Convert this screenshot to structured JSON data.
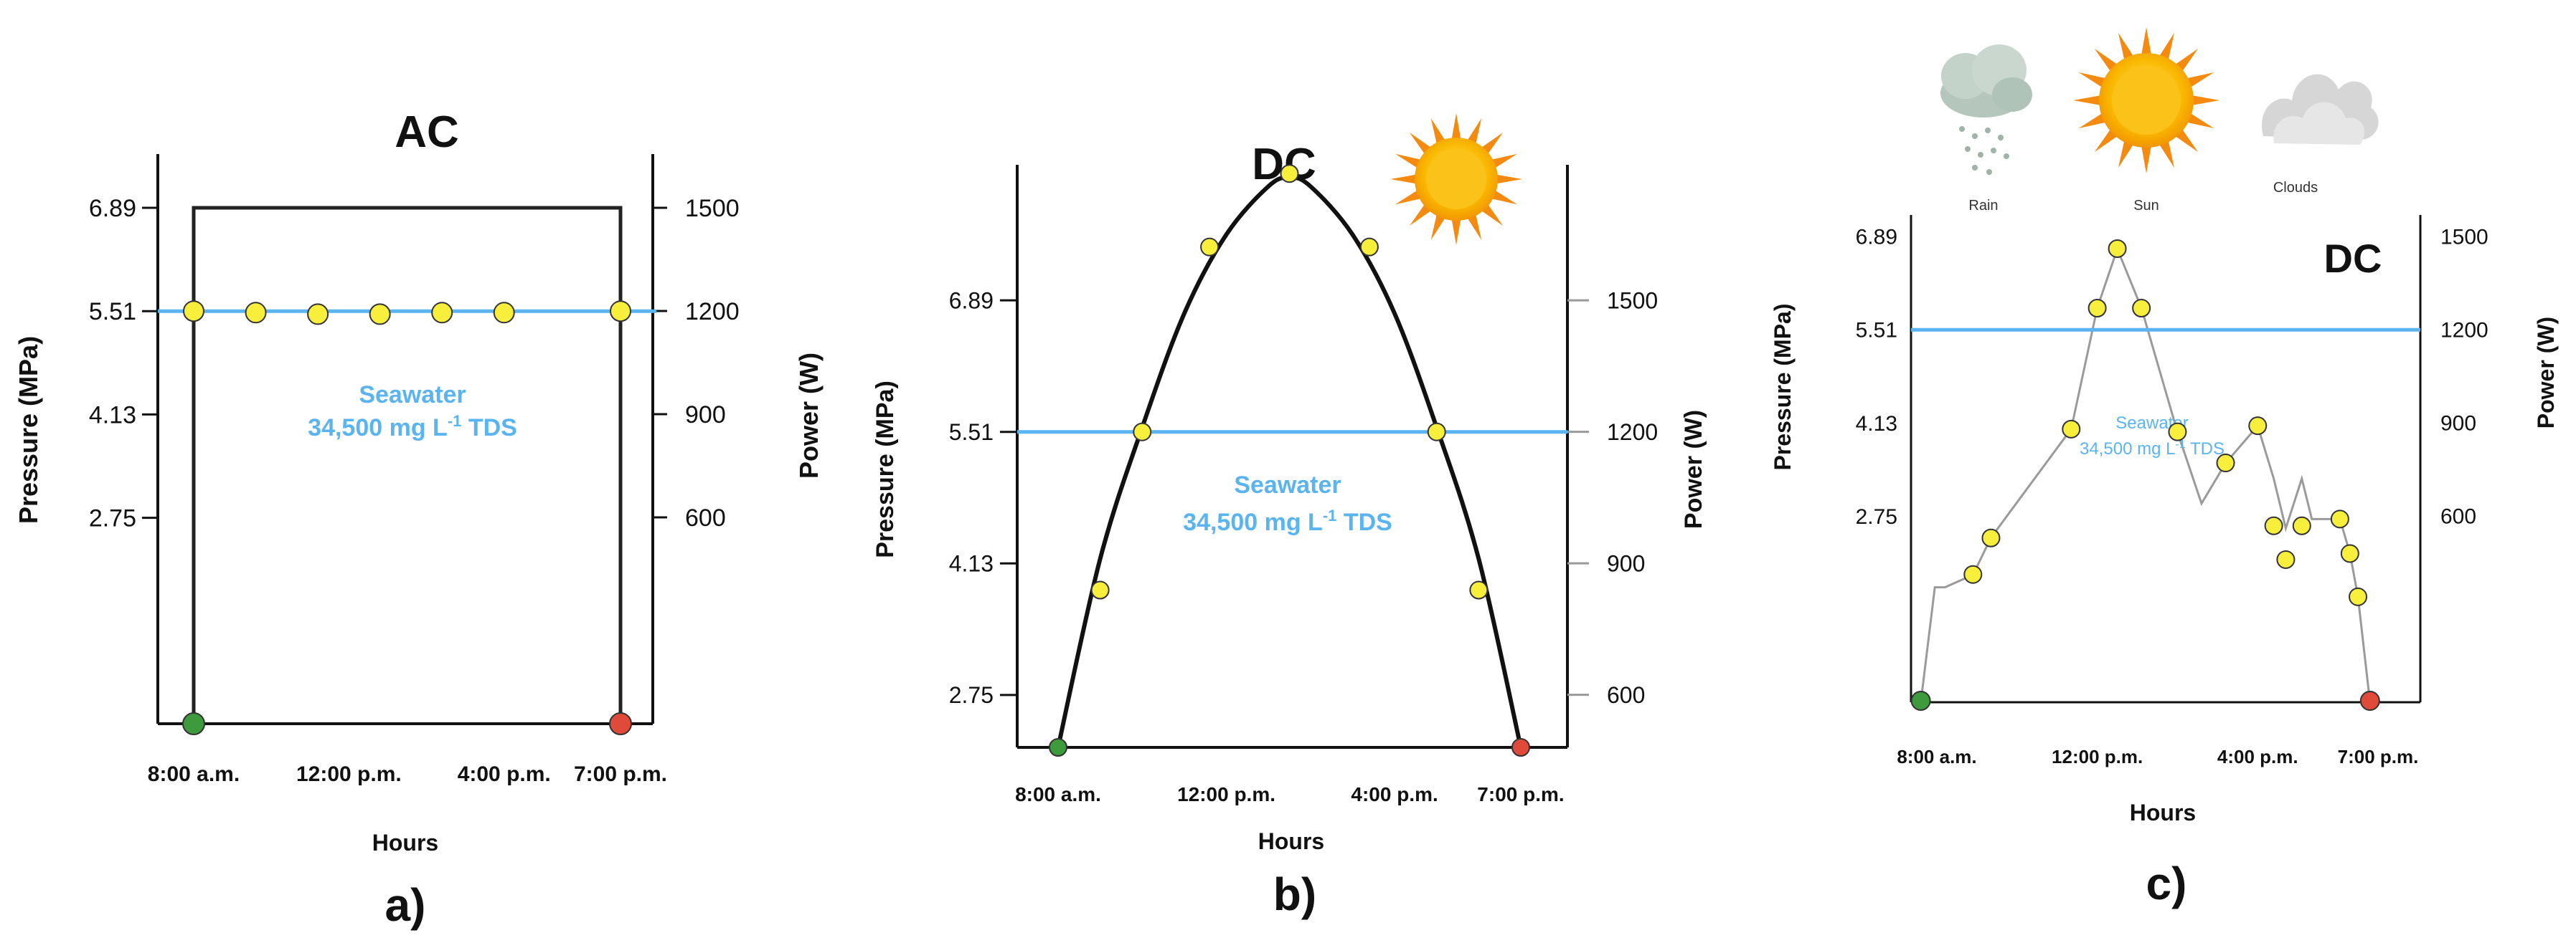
{
  "colors": {
    "axis": "#111111",
    "curve": "#111111",
    "ac_line": "#222222",
    "grey_line": "#9a9a9a",
    "seawater": "#5ab4f0",
    "point_yellow": "#f7ef3c",
    "start_green": "#3d9a3d",
    "end_red": "#e04a3a",
    "sun_core": "#f7b500",
    "sun_rays": "#f58a10"
  },
  "chart_data": [
    {
      "type": "line",
      "panel_label": "a)",
      "title": "AC",
      "xlabel": "Hours",
      "ylabel": "Pressure (MPa)",
      "y2label": "Power (W)",
      "xticks": [
        {
          "x": 8,
          "label": "8:00 a.m."
        },
        {
          "x": 12,
          "label": "12:00 p.m."
        },
        {
          "x": 16,
          "label": "4:00 p.m."
        },
        {
          "x": 19,
          "label": "7:00 p.m."
        }
      ],
      "yticks": [
        {
          "y": 2.75,
          "label": "2.75"
        },
        {
          "y": 4.13,
          "label": "4.13"
        },
        {
          "y": 5.51,
          "label": "5.51"
        },
        {
          "y": 6.89,
          "label": "6.89"
        }
      ],
      "y2ticks": [
        {
          "y": 600,
          "label": "600"
        },
        {
          "y": 900,
          "label": "900"
        },
        {
          "y": 1200,
          "label": "1200"
        },
        {
          "y": 1500,
          "label": "1500"
        }
      ],
      "xlim": [
        8,
        19
      ],
      "ylim": [
        0,
        6.89
      ],
      "y2lim": [
        0,
        1500
      ],
      "power_curve": {
        "x": [
          8,
          8,
          19,
          19
        ],
        "y": [
          0,
          1500,
          1500,
          0
        ]
      },
      "seawater_line": {
        "y": 5.51,
        "label_line1": "Seawater",
        "label_line2": "34,500 mg L",
        "label_sup": "-1",
        "label_tail": " TDS"
      },
      "points": {
        "x": [
          8,
          9.6,
          11.2,
          12.8,
          14.4,
          16,
          17.6,
          19
        ],
        "y": [
          5.51,
          5.49,
          5.47,
          5.47,
          5.49,
          5.49,
          5.51,
          0
        ]
      },
      "start": {
        "x": 8,
        "y": 0
      },
      "end": {
        "x": 19,
        "y": 0
      }
    },
    {
      "type": "line",
      "panel_label": "b)",
      "title": "DC",
      "xlabel": "Hours",
      "ylabel": "Pressure (MPa)",
      "y2label": "Power (W)",
      "xticks": [
        {
          "x": 8,
          "label": "8:00 a.m."
        },
        {
          "x": 12,
          "label": "12:00 p.m."
        },
        {
          "x": 16,
          "label": "4:00 p.m."
        },
        {
          "x": 19,
          "label": "7:00 p.m."
        }
      ],
      "yticks": [
        {
          "y": 2.75,
          "label": "2.75"
        },
        {
          "y": 4.13,
          "label": "4.13"
        },
        {
          "y": 5.51,
          "label": "5.51"
        },
        {
          "y": 6.89,
          "label": "6.89"
        }
      ],
      "y2ticks": [
        {
          "y": 600,
          "label": "600"
        },
        {
          "y": 900,
          "label": "900"
        },
        {
          "y": 1200,
          "label": "1200"
        },
        {
          "y": 1500,
          "label": "1500"
        }
      ],
      "xlim": [
        8,
        19
      ],
      "ylim": [
        2.2,
        8.5
      ],
      "y2lim": [
        480,
        1850
      ],
      "power_curve": {
        "x": [
          8,
          9,
          10,
          11,
          12,
          13,
          13.5,
          14,
          15,
          16,
          17,
          18,
          19
        ],
        "y": [
          480,
          910,
          1210,
          1470,
          1650,
          1760,
          1780,
          1760,
          1650,
          1470,
          1210,
          910,
          480
        ]
      },
      "seawater_line": {
        "y": 5.51,
        "label_line1": "Seawater",
        "label_line2": "34,500 mg L",
        "label_sup": "-1",
        "label_tail": " TDS"
      },
      "points": {
        "x": [
          9,
          10,
          11.6,
          13.5,
          15.4,
          17,
          18
        ],
        "y": [
          3.85,
          5.51,
          7.45,
          8.22,
          7.45,
          5.51,
          3.85
        ]
      },
      "start": {
        "x": 8,
        "y": 2.2
      },
      "end": {
        "x": 19,
        "y": 2.2
      }
    },
    {
      "type": "line",
      "panel_label": "c)",
      "title": "DC",
      "xlabel": "Hours",
      "ylabel": "Pressure (MPa)",
      "y2label": "Power (W)",
      "xticks": [
        {
          "x": 8,
          "label": "8:00 a.m."
        },
        {
          "x": 12,
          "label": "12:00 p.m."
        },
        {
          "x": 16,
          "label": "4:00 p.m."
        },
        {
          "x": 19,
          "label": "7:00 p.m."
        }
      ],
      "yticks": [
        {
          "y": 2.75,
          "label": "2.75"
        },
        {
          "y": 4.13,
          "label": "4.13"
        },
        {
          "y": 5.51,
          "label": "5.51"
        },
        {
          "y": 6.89,
          "label": "6.89"
        }
      ],
      "y2ticks": [
        {
          "y": 600,
          "label": "600"
        },
        {
          "y": 900,
          "label": "900"
        },
        {
          "y": 1200,
          "label": "1200"
        },
        {
          "y": 1500,
          "label": "1500"
        }
      ],
      "xlim": [
        8,
        19
      ],
      "ylim": [
        0,
        6.89
      ],
      "y2lim": [
        0,
        1500
      ],
      "power_curve": {
        "x": [
          7.6,
          7.95,
          8.2,
          8.9,
          9.35,
          11.35,
          12,
          12.5,
          13.1,
          14,
          14.6,
          15.2,
          16,
          16.4,
          16.7,
          17.1,
          17.35,
          18.05,
          18.3,
          18.5,
          18.8
        ],
        "y": [
          0,
          370,
          370,
          410,
          530,
          880,
          1270,
          1460,
          1270,
          870,
          640,
          770,
          890,
          720,
          560,
          720,
          590,
          590,
          480,
          340,
          0
        ]
      },
      "seawater_line": {
        "y": 5.51,
        "label_line1": "Seawater",
        "label_line2": "34,500 mg L",
        "label_sup": "-1",
        "label_tail": " TDS"
      },
      "points": {
        "x": [
          8.9,
          9.35,
          11.35,
          12,
          12.5,
          13.1,
          14,
          15.2,
          16,
          16.4,
          16.7,
          17.1,
          18.05,
          18.3,
          18.5
        ],
        "y": [
          1.89,
          2.43,
          4.04,
          5.83,
          6.71,
          5.83,
          4.0,
          3.54,
          4.09,
          2.61,
          2.11,
          2.61,
          2.71,
          2.2,
          1.56
        ]
      },
      "start": {
        "x": 7.6,
        "y": 0
      },
      "end": {
        "x": 18.8,
        "y": 0
      },
      "weather": [
        {
          "icon": "rain-cloud-icon",
          "label": "Rain"
        },
        {
          "icon": "sun-icon",
          "label": "Sun"
        },
        {
          "icon": "clouds-icon",
          "label": "Clouds"
        }
      ]
    }
  ]
}
